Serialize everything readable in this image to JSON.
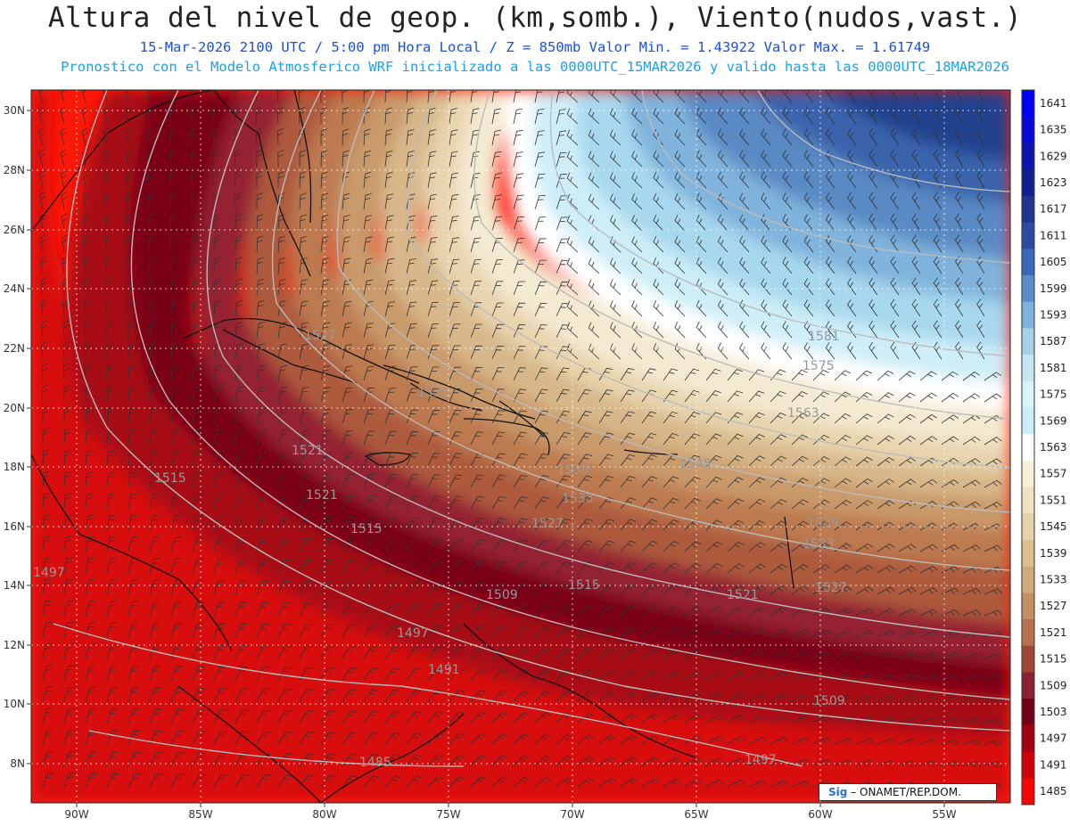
{
  "title": "Altura del nivel de geop. (km,somb.), Viento(nudos,vast.)",
  "subtitle_line1": "15-Mar-2026  2100 UTC / 5:00 pm Hora Local / Z = 850mb    Valor Min. = 1.43922  Valor Max. = 1.61749",
  "subtitle_line2": "Pronostico con el Modelo Atmosferico WRF inicializado a las 0000UTC_15MAR2026 y valido hasta las  0000UTC_18MAR2026",
  "credit": {
    "logo": "Sig",
    "text": "– ONAMET/REP.DOM."
  },
  "lat_labels": [
    "30N",
    "28N",
    "26N",
    "24N",
    "22N",
    "20N",
    "18N",
    "16N",
    "14N",
    "12N",
    "10N",
    "8N"
  ],
  "lon_labels": [
    "90W",
    "85W",
    "80W",
    "75W",
    "70W",
    "65W",
    "60W",
    "55W"
  ],
  "colorbar": {
    "levels": [
      "1641",
      "1635",
      "1629",
      "1623",
      "1617",
      "1611",
      "1605",
      "1599",
      "1593",
      "1587",
      "1581",
      "1575",
      "1569",
      "1563",
      "1557",
      "1551",
      "1545",
      "1539",
      "1533",
      "1527",
      "1521",
      "1515",
      "1509",
      "1503",
      "1497",
      "1491",
      "1485"
    ],
    "colors": [
      "#0000ff",
      "#0a0ad8",
      "#0c14b0",
      "#101e90",
      "#1e3490",
      "#2c4aa0",
      "#3a68b8",
      "#5a8cc8",
      "#82b0dc",
      "#a6d0e8",
      "#c4e6f2",
      "#d8f2f8",
      "#c8eef8",
      "#ffffff",
      "#f8f0d8",
      "#f0e2c0",
      "#e6d2a8",
      "#dcc090",
      "#d0aa78",
      "#c49060",
      "#b87050",
      "#a04838",
      "#8a2030",
      "#700018",
      "#a00010",
      "#d00008",
      "#f80404"
    ]
  },
  "contour_labels": [
    {
      "text": "1581"
    },
    {
      "text": "1575"
    },
    {
      "text": "1563"
    },
    {
      "text": "1545"
    },
    {
      "text": "1539"
    },
    {
      "text": "1533"
    },
    {
      "text": "1527"
    },
    {
      "text": "1521"
    },
    {
      "text": "1515"
    },
    {
      "text": "1509"
    },
    {
      "text": "1497"
    },
    {
      "text": "1491"
    },
    {
      "text": "1485"
    },
    {
      "text": "1539"
    },
    {
      "text": "1533"
    },
    {
      "text": "1527"
    },
    {
      "text": "1521"
    },
    {
      "text": "1521"
    },
    {
      "text": "1515"
    },
    {
      "text": "1515"
    },
    {
      "text": "1497"
    },
    {
      "text": "1509"
    },
    {
      "text": "1497"
    },
    {
      "text": "1533"
    },
    {
      "text": "1527"
    }
  ]
}
